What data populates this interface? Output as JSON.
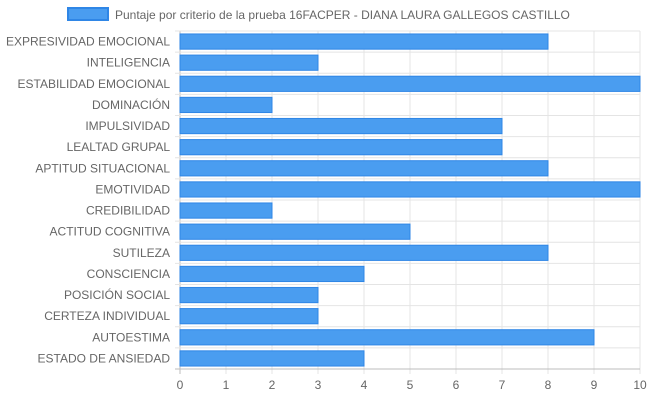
{
  "chart_data": {
    "type": "bar",
    "orientation": "horizontal",
    "title": "",
    "xlabel": "",
    "ylabel": "",
    "legend": {
      "position": "top-center",
      "entries": [
        "Puntaje por criterio de la prueba 16FACPER - DIANA LAURA GALLEGOS CASTILLO"
      ]
    },
    "categories": [
      "EXPRESIVIDAD EMOCIONAL",
      "INTELIGENCIA",
      "ESTABILIDAD EMOCIONAL",
      "DOMINACIÓN",
      "IMPULSIVIDAD",
      "LEALTAD GRUPAL",
      "APTITUD SITUACIONAL",
      "EMOTIVIDAD",
      "CREDIBILIDAD",
      "ACTITUD COGNITIVA",
      "SUTILEZA",
      "CONSCIENCIA",
      "POSICIÓN SOCIAL",
      "CERTEZA INDIVIDUAL",
      "AUTOESTIMA",
      "ESTADO DE ANSIEDAD"
    ],
    "series": [
      {
        "name": "Puntaje por criterio de la prueba 16FACPER - DIANA LAURA GALLEGOS CASTILLO",
        "values": [
          8,
          3,
          10,
          2,
          7,
          7,
          8,
          10,
          2,
          5,
          8,
          4,
          3,
          3,
          9,
          4
        ]
      }
    ],
    "xlim": [
      0,
      10
    ],
    "xticks": [
      "0",
      "1",
      "2",
      "3",
      "4",
      "5",
      "6",
      "7",
      "8",
      "9",
      "10"
    ],
    "grid": true,
    "colors": {
      "bar_fill": "#4a9df0",
      "bar_stroke": "#2f86e6",
      "grid": "#e4e4e4",
      "axis": "#bdbdbd",
      "text": "#666666"
    }
  }
}
